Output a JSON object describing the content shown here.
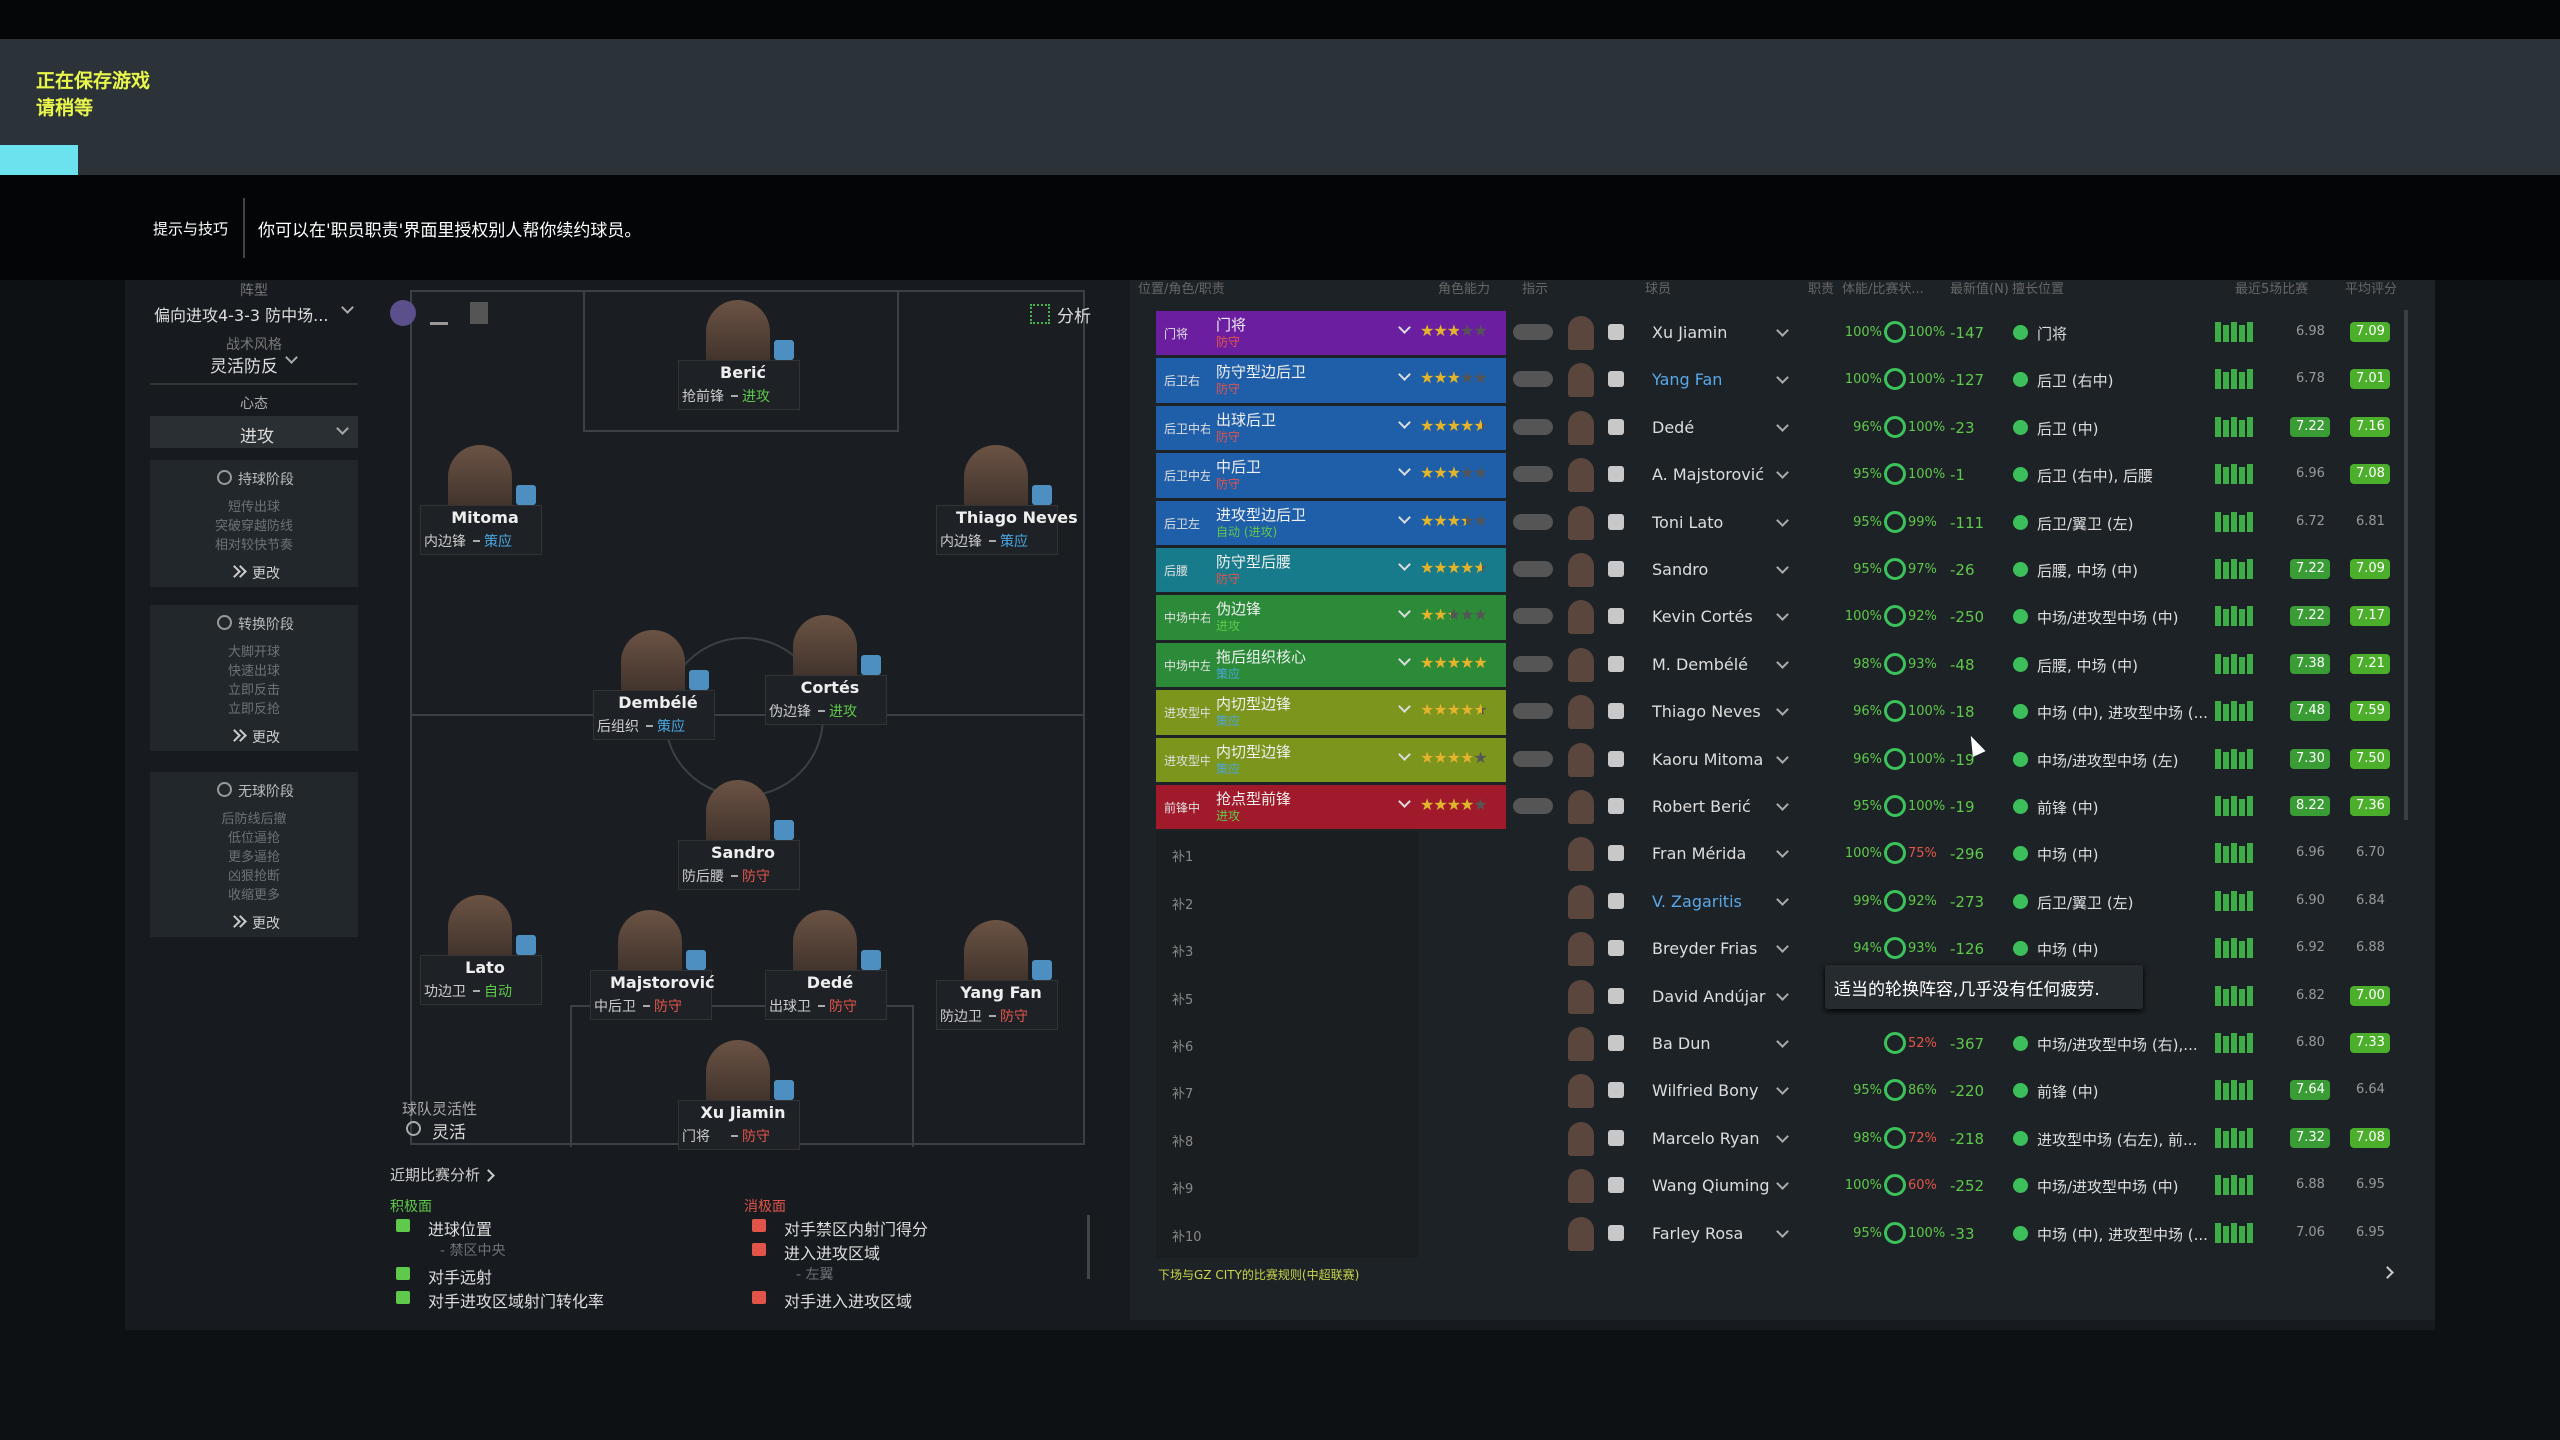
{
  "saving": {
    "line1": "正在保存游戏",
    "line2": "请稍等"
  },
  "tip": {
    "label": "提示与技巧",
    "text": "你可以在'职员职责'界面里授权别人帮你续约球员。"
  },
  "tactics": {
    "formation_label": "阵型",
    "formation": "偏向进攻4-3-3 防中场...",
    "style_label": "战术风格",
    "style": "灵活防反",
    "mentality_label": "心态",
    "mentality": "进攻",
    "phases": [
      {
        "title": "持球阶段",
        "items": [
          "短传出球",
          "突破穿越防线",
          "相对较快节奏"
        ],
        "more": "更改"
      },
      {
        "title": "转换阶段",
        "items": [
          "大脚开球",
          "快速出球",
          "立即反击",
          "立即反抢"
        ],
        "more": "更改"
      },
      {
        "title": "无球阶段",
        "items": [
          "后防线后撤",
          "低位逼抢",
          "更多逼抢",
          "凶狠抢断",
          "收缩更多"
        ],
        "more": "更改"
      }
    ]
  },
  "pitch": {
    "analysis": "分析",
    "fluidity_label": "球队灵活性",
    "fluidity": "灵活",
    "players": [
      {
        "name": "Berić",
        "role": "抢前锋",
        "duty": "进攻"
      },
      {
        "name": "Mitoma",
        "role": "内边锋",
        "duty": "策应"
      },
      {
        "name": "Thiago Neves",
        "role": "内边锋",
        "duty": "策应"
      },
      {
        "name": "Dembélé",
        "role": "后组织",
        "duty": "策应"
      },
      {
        "name": "Cortés",
        "role": "伪边锋",
        "duty": "进攻"
      },
      {
        "name": "Sandro",
        "role": "防后腰",
        "duty": "防守"
      },
      {
        "name": "Lato",
        "role": "功边卫",
        "duty": "自动"
      },
      {
        "name": "Majstorović",
        "role": "中后卫",
        "duty": "防守"
      },
      {
        "name": "Dedé",
        "role": "出球卫",
        "duty": "防守"
      },
      {
        "name": "Yang Fan",
        "role": "防边卫",
        "duty": "防守"
      },
      {
        "name": "Xu Jiamin",
        "role": "门将",
        "duty": "防守"
      }
    ]
  },
  "recent": {
    "title": "近期比赛分析",
    "positive_label": "积极面",
    "negative_label": "消极面",
    "positives": [
      {
        "text": "进球位置",
        "sub": "- 禁区中央"
      },
      {
        "text": "对手远射"
      },
      {
        "text": "对手进攻区域射门转化率"
      }
    ],
    "negatives": [
      {
        "text": "对手禁区内射门得分"
      },
      {
        "text": "进入进攻区域",
        "sub": "- 左翼"
      },
      {
        "text": "对手进入进攻区域"
      }
    ]
  },
  "squad": {
    "headers": [
      "位置/角色/职责",
      "角色能力",
      "指示",
      "球员",
      "职责",
      "体能/比赛状...",
      "最新值(N)",
      "擅长位置",
      "最近5场比赛",
      "平均评分"
    ],
    "rows": [
      {
        "pos": "门将",
        "role": "门将",
        "duty": "防守",
        "stars": 2.5,
        "name": "Xu Jiamin",
        "cond": "100%",
        "sharp": "100%",
        "value": -147,
        "position": "门将",
        "rating": "6.98",
        "avg": "7.09"
      },
      {
        "pos": "后卫右",
        "role": "防守型边后卫",
        "duty": "防守",
        "stars": 2.5,
        "name": "Yang Fan",
        "cond": "100%",
        "sharp": "100%",
        "value": -127,
        "position": "后卫 (右中)",
        "rating": "6.78",
        "avg": "7.01"
      },
      {
        "pos": "后卫中右",
        "role": "出球后卫",
        "duty": "防守",
        "stars": 4,
        "name": "Dedé",
        "cond": "96%",
        "sharp": "100%",
        "value": -23,
        "position": "后卫 (中)",
        "rating": "7.22",
        "avg": "7.16"
      },
      {
        "pos": "后卫中左",
        "role": "中后卫",
        "duty": "防守",
        "stars": 2.5,
        "name": "A. Majstorović",
        "cond": "95%",
        "sharp": "100%",
        "value": -1,
        "position": "后卫 (右中), 后腰",
        "rating": "6.96",
        "avg": "7.08"
      },
      {
        "pos": "后卫左",
        "role": "进攻型边后卫",
        "duty": "自动 (进攻)",
        "stars": 3,
        "name": "Toni Lato",
        "cond": "95%",
        "sharp": "99%",
        "value": -111,
        "position": "后卫/翼卫 (左)",
        "rating": "6.72",
        "avg": "6.81"
      },
      {
        "pos": "后腰",
        "role": "防守型后腰",
        "duty": "防守",
        "stars": 4,
        "name": "Sandro",
        "cond": "95%",
        "sharp": "97%",
        "value": -26,
        "position": "后腰, 中场 (中)",
        "rating": "7.22",
        "avg": "7.09"
      },
      {
        "pos": "中场中右",
        "role": "伪边锋",
        "duty": "进攻",
        "stars": 2,
        "name": "Kevin Cortés",
        "cond": "100%",
        "sharp": "92%",
        "value": -250,
        "position": "中场/进攻型中场 (中)",
        "rating": "7.22",
        "avg": "7.17"
      },
      {
        "pos": "中场中左",
        "role": "拖后组织核心",
        "duty": "策应",
        "stars": 4.5,
        "name": "M. Dembélé",
        "cond": "98%",
        "sharp": "93%",
        "value": -48,
        "position": "后腰, 中场 (中)",
        "rating": "7.38",
        "avg": "7.21"
      },
      {
        "pos": "进攻型中...",
        "role": "内切型边锋",
        "duty": "策应",
        "stars": 4,
        "name": "Thiago Neves",
        "cond": "96%",
        "sharp": "100%",
        "value": -18,
        "position": "中场 (中), 进攻型中场 (...",
        "rating": "7.48",
        "avg": "7.59"
      },
      {
        "pos": "进攻型中...",
        "role": "内切型边锋",
        "duty": "策应",
        "stars": 3.5,
        "name": "Kaoru Mitoma",
        "cond": "96%",
        "sharp": "100%",
        "value": -19,
        "position": "中场/进攻型中场 (左)",
        "rating": "7.30",
        "avg": "7.50"
      },
      {
        "pos": "前锋中",
        "role": "抢点型前锋",
        "duty": "进攻",
        "stars": 3.5,
        "name": "Robert Berić",
        "cond": "95%",
        "sharp": "100%",
        "value": -19,
        "position": "前锋 (中)",
        "rating": "8.22",
        "avg": "7.36"
      },
      {
        "pos": "补1",
        "name": "Fran Mérida",
        "cond": "100%",
        "sharp": "75%",
        "value": -296,
        "position": "中场 (中)",
        "rating": "6.96",
        "avg": "6.70"
      },
      {
        "pos": "补2",
        "name": "V. Zagaritis",
        "cond": "99%",
        "sharp": "92%",
        "value": -273,
        "position": "后卫/翼卫 (左)",
        "rating": "6.90",
        "avg": "6.84"
      },
      {
        "pos": "补3",
        "name": "Breyder Frias",
        "cond": "94%",
        "sharp": "93%",
        "value": -126,
        "position": "中场 (中)",
        "rating": "6.92",
        "avg": "6.88"
      },
      {
        "pos": "补5",
        "name": "David Andújar",
        "rating": "6.82",
        "avg": "7.00"
      },
      {
        "pos": "补6",
        "name": "Ba Dun",
        "sharp": "52%",
        "value": -367,
        "position": "中场/进攻型中场 (右),...",
        "rating": "6.80",
        "avg": "7.33"
      },
      {
        "pos": "补7",
        "name": "Wilfried Bony",
        "cond": "95%",
        "sharp": "86%",
        "value": -220,
        "position": "前锋 (中)",
        "rating": "7.64",
        "avg": "6.64"
      },
      {
        "pos": "补8",
        "name": "Marcelo Ryan",
        "cond": "98%",
        "sharp": "72%",
        "value": -218,
        "position": "进攻型中场 (右左), 前...",
        "rating": "7.32",
        "avg": "7.08"
      },
      {
        "pos": "补9",
        "name": "Wang Qiuming",
        "cond": "100%",
        "sharp": "60%",
        "value": -252,
        "position": "中场/进攻型中场 (中)",
        "rating": "6.88",
        "avg": "6.95"
      },
      {
        "pos": "补10",
        "name": "Farley Rosa",
        "cond": "95%",
        "sharp": "100%",
        "value": -33,
        "position": "中场 (中), 进攻型中场 (...",
        "rating": "7.06",
        "avg": "6.95"
      }
    ],
    "footer": "下场与GZ CITY的比赛规则(中超联赛)"
  },
  "tooltip": "适当的轮换阵容,几乎没有任何疲劳."
}
